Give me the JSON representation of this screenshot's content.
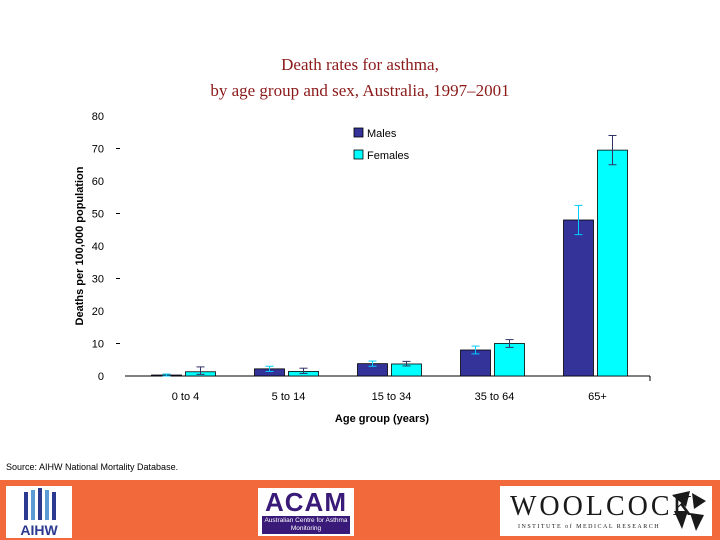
{
  "title_line1": "Death rates for asthma,",
  "title_line2": "by age group and sex, Australia, 1997–2001",
  "source": "Source: AIHW National Mortality Database.",
  "chart_data": {
    "type": "bar",
    "categories": [
      "0 to 4",
      "5 to 14",
      "15 to 34",
      "35 to 64",
      "65+"
    ],
    "series": [
      {
        "name": "Males",
        "color": "#333399",
        "values": [
          0.3,
          2.2,
          3.8,
          8.0,
          48.0
        ],
        "error_low": [
          0.0,
          1.4,
          3.0,
          6.8,
          43.5
        ],
        "error_high": [
          0.6,
          3.0,
          4.6,
          9.2,
          52.5
        ]
      },
      {
        "name": "Females",
        "color": "#00ffff",
        "values": [
          1.3,
          1.4,
          3.7,
          10.0,
          69.5
        ],
        "error_low": [
          0.5,
          0.8,
          3.1,
          8.8,
          65.0
        ],
        "error_high": [
          2.8,
          2.4,
          4.5,
          11.2,
          74.0
        ]
      }
    ],
    "xlabel": "Age group (years)",
    "ylabel": "Deaths per 100,000 population",
    "yticks": [
      "0",
      "10",
      "20",
      "30",
      "40",
      "50",
      "60",
      "70",
      "80"
    ],
    "ylim": [
      0,
      80
    ],
    "legend_position": "top-right",
    "grid": false
  },
  "logos": {
    "aihw": "AIHW",
    "acam_title": "ACAM",
    "acam_sub": "Australian Centre for Asthma Monitoring",
    "woolcock": "WOOLCOCK",
    "woolcock_sub": "INSTITUTE of MEDICAL RESEARCH"
  }
}
